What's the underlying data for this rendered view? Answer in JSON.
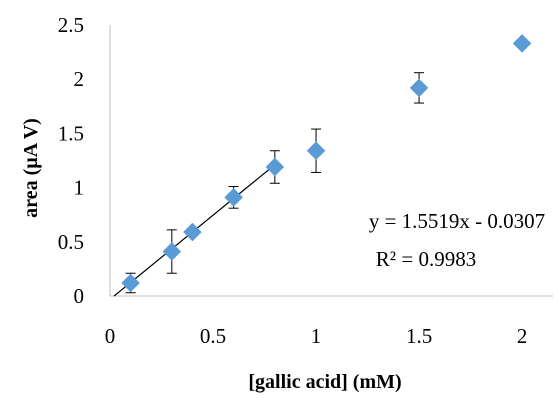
{
  "chart_data": {
    "type": "scatter",
    "xlabel": "[gallic acid] (mM)",
    "ylabel": "area (µA V)",
    "xlim": [
      0,
      2.15
    ],
    "ylim": [
      0,
      2.5
    ],
    "x_ticks": [
      "0",
      "0.5",
      "1",
      "1.5",
      "2"
    ],
    "x_tick_values": [
      0,
      0.5,
      1,
      1.5,
      2
    ],
    "y_ticks": [
      "0",
      "0.5",
      "1",
      "1.5",
      "2",
      "2.5"
    ],
    "y_tick_values": [
      0,
      0.5,
      1,
      1.5,
      2,
      2.5
    ],
    "grid": false,
    "legend": "none",
    "series": [
      {
        "x": [
          0.1,
          0.3,
          0.4,
          0.6,
          0.8,
          1.0,
          1.5,
          2.0
        ],
        "y": [
          0.12,
          0.41,
          0.59,
          0.91,
          1.19,
          1.34,
          1.92,
          2.33
        ],
        "error": [
          0.09,
          0.2,
          0.0,
          0.1,
          0.15,
          0.2,
          0.14,
          0.0
        ],
        "color": "#5b9bd5"
      }
    ],
    "trendline": {
      "slope": 1.5519,
      "intercept": -0.0307,
      "x_range": [
        0.0198,
        0.8
      ],
      "color": "#000000"
    },
    "annotations": {
      "equation": "y = 1.5519x - 0.0307",
      "r_squared": "R² = 0.9983"
    }
  }
}
